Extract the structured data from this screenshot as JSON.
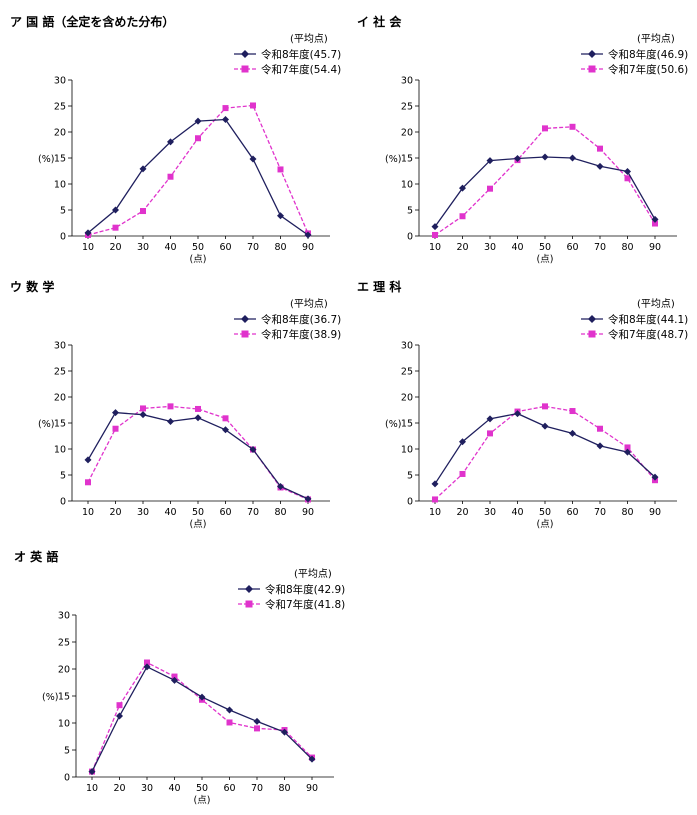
{
  "common": {
    "ylabel": "(%)",
    "xlabel": "(点)",
    "legend_header": "(平均点)",
    "colors": {
      "r8": "#1f1f5e",
      "r7": "#e033cc"
    }
  },
  "chart_data": [
    {
      "type": "line",
      "title": "ア 国 語（全定を含めた分布）",
      "x": [
        10,
        20,
        30,
        40,
        50,
        60,
        70,
        80,
        90
      ],
      "ylim": [
        0,
        30
      ],
      "yticks": [
        0,
        5,
        10,
        15,
        20,
        25,
        30
      ],
      "ylabel": "(%)",
      "xlabel": "(点)",
      "legend_placement": "top-right",
      "series": [
        {
          "name": "令和8年度(45.7)",
          "marker": "diamond",
          "values": [
            0.6,
            5.0,
            12.9,
            18.1,
            22.1,
            22.4,
            14.8,
            3.9,
            0.2
          ]
        },
        {
          "name": "令和7年度(54.4)",
          "marker": "square",
          "values": [
            0.2,
            1.6,
            4.8,
            11.4,
            18.8,
            24.6,
            25.1,
            12.8,
            0.5
          ]
        }
      ]
    },
    {
      "type": "line",
      "title": "イ 社 会",
      "x": [
        10,
        20,
        30,
        40,
        50,
        60,
        70,
        80,
        90
      ],
      "ylim": [
        0,
        30
      ],
      "yticks": [
        0,
        5,
        10,
        15,
        20,
        25,
        30
      ],
      "ylabel": "(%)",
      "xlabel": "(点)",
      "legend_placement": "top-right",
      "series": [
        {
          "name": "令和8年度(46.9)",
          "marker": "diamond",
          "values": [
            1.8,
            9.2,
            14.5,
            14.9,
            15.2,
            15.0,
            13.4,
            12.4,
            3.2
          ]
        },
        {
          "name": "令和7年度(50.6)",
          "marker": "square",
          "values": [
            0.2,
            3.8,
            9.1,
            14.6,
            20.7,
            21.0,
            16.8,
            11.1,
            2.4
          ]
        }
      ]
    },
    {
      "type": "line",
      "title": "ウ 数 学",
      "x": [
        10,
        20,
        30,
        40,
        50,
        60,
        70,
        80,
        90
      ],
      "ylim": [
        0,
        30
      ],
      "yticks": [
        0,
        5,
        10,
        15,
        20,
        25,
        30
      ],
      "ylabel": "(%)",
      "xlabel": "(点)",
      "legend_placement": "top-right",
      "series": [
        {
          "name": "令和8年度(36.7)",
          "marker": "diamond",
          "values": [
            7.9,
            17.0,
            16.6,
            15.3,
            16.0,
            13.7,
            9.9,
            2.8,
            0.4
          ]
        },
        {
          "name": "令和7年度(38.9)",
          "marker": "square",
          "values": [
            3.6,
            13.9,
            17.8,
            18.2,
            17.7,
            15.9,
            9.9,
            2.6,
            0.3
          ]
        }
      ]
    },
    {
      "type": "line",
      "title": "エ 理 科",
      "x": [
        10,
        20,
        30,
        40,
        50,
        60,
        70,
        80,
        90
      ],
      "ylim": [
        0,
        30
      ],
      "yticks": [
        0,
        5,
        10,
        15,
        20,
        25,
        30
      ],
      "ylabel": "(%)",
      "xlabel": "(点)",
      "legend_placement": "top-right",
      "series": [
        {
          "name": "令和8年度(44.1)",
          "marker": "diamond",
          "values": [
            3.3,
            11.4,
            15.8,
            16.8,
            14.4,
            13.0,
            10.6,
            9.4,
            4.6
          ]
        },
        {
          "name": "令和7年度(48.7)",
          "marker": "square",
          "values": [
            0.3,
            5.2,
            13.0,
            17.2,
            18.2,
            17.3,
            13.9,
            10.3,
            4.0
          ]
        }
      ]
    },
    {
      "type": "line",
      "title": "オ 英 語",
      "x": [
        10,
        20,
        30,
        40,
        50,
        60,
        70,
        80,
        90
      ],
      "ylim": [
        0,
        30
      ],
      "yticks": [
        0,
        5,
        10,
        15,
        20,
        25,
        30
      ],
      "ylabel": "(%)",
      "xlabel": "(点)",
      "legend_placement": "top-right",
      "series": [
        {
          "name": "令和8年度(42.9)",
          "marker": "diamond",
          "values": [
            1.0,
            11.3,
            20.4,
            17.9,
            14.8,
            12.4,
            10.3,
            8.3,
            3.3
          ]
        },
        {
          "name": "令和7年度(41.8)",
          "marker": "square",
          "values": [
            1.0,
            13.3,
            21.2,
            18.6,
            14.3,
            10.1,
            9.0,
            8.7,
            3.6
          ]
        }
      ]
    }
  ]
}
